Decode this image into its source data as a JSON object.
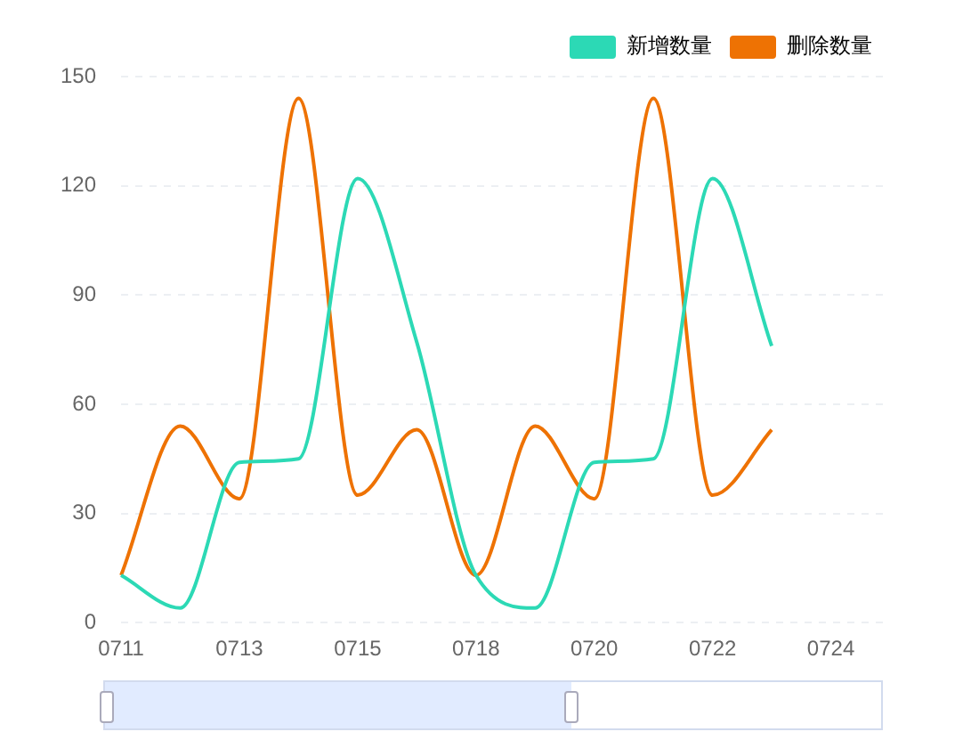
{
  "chart_data": {
    "type": "line",
    "categories": [
      "0711",
      null,
      "0713",
      null,
      "0715",
      null,
      "0718",
      null,
      "0720",
      null,
      "0722",
      null,
      "0724",
      null
    ],
    "series": [
      {
        "name": "新增数量",
        "color": "#2cd9b5",
        "values": [
          13,
          4,
          44,
          45,
          122,
          77,
          13,
          4,
          44,
          45,
          122,
          76,
          null,
          null
        ]
      },
      {
        "name": "删除数量",
        "color": "#ee7203",
        "values": [
          13,
          54,
          34,
          144,
          35,
          53,
          13,
          54,
          34,
          144,
          35,
          53,
          null,
          null
        ]
      }
    ],
    "ylim": [
      0,
      150
    ],
    "yticks": [
      0,
      30,
      60,
      90,
      120,
      150
    ],
    "grid": "y",
    "legend": "top right",
    "marker": "none",
    "line_style": "solid"
  }
}
